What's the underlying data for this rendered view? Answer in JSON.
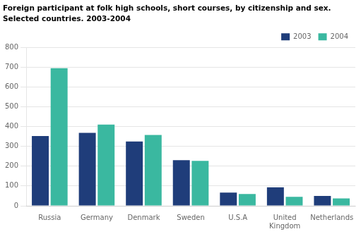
{
  "chart_data": {
    "type": "bar",
    "title": "Foreign participant at folk high schools, short courses, by citizenship and sex.",
    "subtitle": "Selected countries. 2003-2004",
    "categories": [
      "Russia",
      "Germany",
      "Denmark",
      "Sweden",
      "U.S.A",
      "United\nKingdom",
      "Netherlands"
    ],
    "series": [
      {
        "name": "2003",
        "color": "#1f3d7a",
        "values": [
          352,
          368,
          325,
          230,
          67,
          93,
          50
        ]
      },
      {
        "name": "2004",
        "color": "#3ab8a0",
        "values": [
          695,
          410,
          358,
          227,
          60,
          45,
          37
        ]
      }
    ],
    "ylim": [
      0,
      800
    ],
    "yticks": [
      0,
      100,
      200,
      300,
      400,
      500,
      600,
      700,
      800
    ],
    "grid": true,
    "legend": "upper right"
  }
}
